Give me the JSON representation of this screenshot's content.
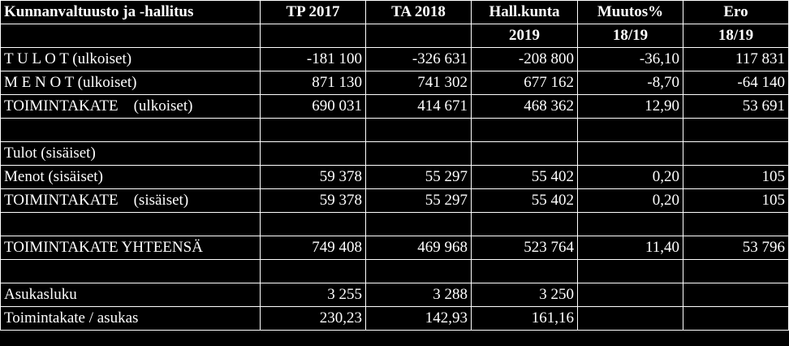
{
  "header": {
    "title": "Kunnanvaltuusto ja -hallitus",
    "columns": [
      "TP 2017",
      "TA 2018",
      "Hall.kunta",
      "Muutos%",
      "Ero"
    ],
    "subcolumns": [
      "",
      "",
      "2019",
      "18/19",
      "18/19"
    ]
  },
  "rows": [
    {
      "label": "T U L O T (ulkoiset)",
      "values": [
        "-181 100",
        "-326 631",
        "-208 800",
        "-36,10",
        "117 831"
      ]
    },
    {
      "label": "M E N O T (ulkoiset)",
      "values": [
        "871 130",
        "741 302",
        "677 162",
        "-8,70",
        "-64 140"
      ]
    },
    {
      "label": "TOIMINTAKATE    (ulkoiset)",
      "values": [
        "690 031",
        "414 671",
        "468 362",
        "12,90",
        "53 691"
      ]
    },
    {
      "label": "",
      "values": [
        "",
        "",
        "",
        "",
        ""
      ]
    },
    {
      "label": "Tulot (sisäiset)",
      "values": [
        "",
        "",
        "",
        "",
        ""
      ]
    },
    {
      "label": "Menot (sisäiset)",
      "values": [
        "59 378",
        "55 297",
        "55 402",
        "0,20",
        "105"
      ]
    },
    {
      "label": "TOIMINTAKATE    (sisäiset)",
      "values": [
        "59 378",
        "55 297",
        "55 402",
        "0,20",
        "105"
      ]
    },
    {
      "label": "",
      "values": [
        "",
        "",
        "",
        "",
        ""
      ]
    },
    {
      "label": "TOIMINTAKATE YHTEENSÄ",
      "values": [
        "749 408",
        "469 968",
        "523 764",
        "11,40",
        "53 796"
      ]
    },
    {
      "label": "",
      "values": [
        "",
        "",
        "",
        "",
        ""
      ]
    },
    {
      "label": "Asukasluku",
      "values": [
        "3 255",
        "3 288",
        "3 250",
        "",
        ""
      ]
    },
    {
      "label": "Toimintakate / asukas",
      "values": [
        "230,23",
        "142,93",
        "161,16",
        "",
        ""
      ]
    }
  ]
}
